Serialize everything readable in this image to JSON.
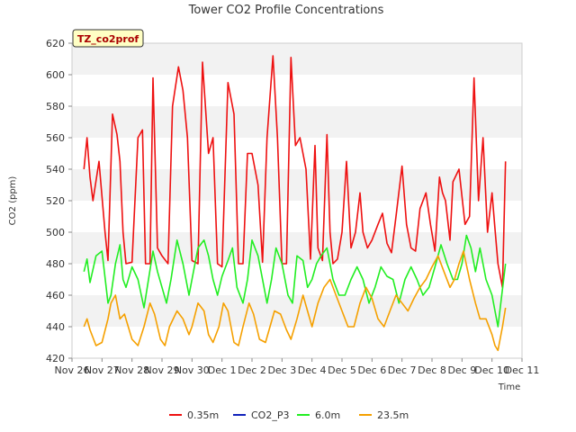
{
  "chart_data": {
    "type": "line",
    "title": "Tower CO2 Profile Concentrations",
    "badge": "TZ_co2prof",
    "xlabel": "Time",
    "ylabel": "CO2 (ppm)",
    "ylim": [
      420,
      620
    ],
    "yticks": [
      420,
      440,
      460,
      480,
      500,
      520,
      540,
      560,
      580,
      600,
      620
    ],
    "xlim": [
      0,
      15
    ],
    "xtick_labels": [
      "Nov 26",
      "Nov 27",
      "Nov 28",
      "Nov 29",
      "Nov 30",
      "Dec 1",
      "Dec 2",
      "Dec 3",
      "Dec 4",
      "Dec 5",
      "Dec 6",
      "Dec 7",
      "Dec 8",
      "Dec 9",
      "Dec 10",
      "Dec 11"
    ],
    "grid": "horizontal bands",
    "legend_position": "bottom",
    "series": [
      {
        "name": "0.35m",
        "color": "#ee1111",
        "x": [
          0.4,
          0.5,
          0.6,
          0.7,
          0.9,
          1.1,
          1.2,
          1.35,
          1.5,
          1.6,
          1.7,
          1.8,
          2.0,
          2.2,
          2.35,
          2.45,
          2.6,
          2.7,
          2.85,
          3.0,
          3.2,
          3.35,
          3.55,
          3.7,
          3.85,
          4.0,
          4.2,
          4.35,
          4.55,
          4.7,
          4.85,
          5.0,
          5.2,
          5.4,
          5.55,
          5.7,
          5.85,
          6.0,
          6.2,
          6.35,
          6.5,
          6.7,
          6.85,
          7.0,
          7.15,
          7.3,
          7.45,
          7.6,
          7.8,
          7.95,
          8.1,
          8.2,
          8.35,
          8.5,
          8.6,
          8.7,
          8.85,
          9.0,
          9.15,
          9.3,
          9.45,
          9.6,
          9.7,
          9.85,
          10.0,
          10.2,
          10.35,
          10.5,
          10.65,
          10.8,
          11.0,
          11.15,
          11.3,
          11.45,
          11.6,
          11.8,
          11.95,
          12.1,
          12.25,
          12.35,
          12.45,
          12.6,
          12.7,
          12.9,
          13.1,
          13.25,
          13.4,
          13.55,
          13.7,
          13.85,
          14.0,
          14.1,
          14.2,
          14.35,
          14.45
        ],
        "values": [
          540,
          560,
          535,
          520,
          545,
          500,
          482,
          575,
          562,
          545,
          500,
          480,
          481,
          560,
          565,
          480,
          480,
          598,
          490,
          485,
          480,
          580,
          605,
          590,
          560,
          482,
          480,
          608,
          550,
          560,
          480,
          478,
          595,
          575,
          480,
          480,
          550,
          550,
          530,
          481,
          560,
          612,
          560,
          480,
          480,
          611,
          555,
          560,
          540,
          483,
          555,
          490,
          482,
          562,
          500,
          480,
          483,
          500,
          545,
          490,
          500,
          525,
          500,
          490,
          495,
          505,
          512,
          493,
          487,
          510,
          542,
          505,
          490,
          488,
          515,
          525,
          505,
          488,
          535,
          525,
          520,
          495,
          532,
          540,
          505,
          510,
          598,
          520,
          560,
          500,
          525,
          502,
          480,
          465,
          545
        ]
      },
      {
        "name": "CO2_P3",
        "color": "#1122bb",
        "x": [],
        "values": []
      },
      {
        "name": "6.0m",
        "color": "#22ee22",
        "x": [
          0.4,
          0.5,
          0.6,
          0.8,
          1.0,
          1.2,
          1.3,
          1.45,
          1.6,
          1.7,
          1.8,
          2.0,
          2.2,
          2.4,
          2.55,
          2.7,
          2.85,
          3.0,
          3.15,
          3.3,
          3.5,
          3.7,
          3.9,
          4.0,
          4.2,
          4.4,
          4.55,
          4.7,
          4.85,
          5.0,
          5.2,
          5.35,
          5.5,
          5.7,
          5.85,
          6.0,
          6.2,
          6.35,
          6.5,
          6.65,
          6.8,
          7.0,
          7.2,
          7.35,
          7.5,
          7.7,
          7.85,
          8.0,
          8.15,
          8.3,
          8.5,
          8.7,
          8.9,
          9.1,
          9.3,
          9.5,
          9.7,
          9.9,
          10.1,
          10.3,
          10.5,
          10.7,
          10.9,
          11.1,
          11.3,
          11.5,
          11.7,
          11.9,
          12.1,
          12.3,
          12.5,
          12.7,
          12.85,
          13.0,
          13.15,
          13.3,
          13.45,
          13.6,
          13.8,
          14.0,
          14.2,
          14.45
        ],
        "values": [
          475,
          483,
          468,
          485,
          488,
          455,
          460,
          480,
          492,
          470,
          465,
          478,
          470,
          452,
          470,
          488,
          475,
          465,
          455,
          470,
          495,
          480,
          460,
          470,
          490,
          495,
          485,
          470,
          460,
          472,
          482,
          490,
          465,
          455,
          470,
          495,
          485,
          470,
          455,
          470,
          490,
          480,
          460,
          455,
          485,
          482,
          465,
          470,
          480,
          485,
          490,
          470,
          460,
          460,
          470,
          478,
          470,
          455,
          465,
          478,
          472,
          470,
          455,
          470,
          478,
          470,
          460,
          465,
          478,
          492,
          480,
          470,
          470,
          480,
          498,
          490,
          475,
          490,
          470,
          460,
          440,
          480
        ]
      },
      {
        "name": "23.5m",
        "color": "#f5a000",
        "x": [
          0.4,
          0.5,
          0.6,
          0.8,
          1.0,
          1.2,
          1.3,
          1.45,
          1.6,
          1.75,
          2.0,
          2.2,
          2.4,
          2.6,
          2.75,
          2.95,
          3.1,
          3.25,
          3.5,
          3.7,
          3.9,
          4.0,
          4.2,
          4.4,
          4.55,
          4.7,
          4.9,
          5.05,
          5.2,
          5.4,
          5.55,
          5.7,
          5.9,
          6.05,
          6.25,
          6.45,
          6.6,
          6.75,
          6.95,
          7.15,
          7.3,
          7.5,
          7.7,
          7.85,
          8.0,
          8.2,
          8.4,
          8.6,
          8.8,
          9.0,
          9.2,
          9.4,
          9.6,
          9.8,
          10.0,
          10.2,
          10.4,
          10.6,
          10.8,
          11.0,
          11.2,
          11.4,
          11.6,
          11.8,
          12.0,
          12.2,
          12.4,
          12.6,
          12.75,
          12.9,
          13.05,
          13.25,
          13.45,
          13.6,
          13.8,
          14.0,
          14.1,
          14.2,
          14.35,
          14.45
        ],
        "values": [
          440,
          445,
          438,
          428,
          430,
          445,
          455,
          460,
          445,
          448,
          432,
          428,
          440,
          455,
          448,
          432,
          428,
          440,
          450,
          445,
          435,
          440,
          455,
          450,
          435,
          430,
          440,
          455,
          450,
          430,
          428,
          440,
          455,
          448,
          432,
          430,
          440,
          450,
          448,
          438,
          432,
          445,
          460,
          450,
          440,
          455,
          465,
          470,
          460,
          450,
          440,
          440,
          455,
          465,
          458,
          445,
          440,
          450,
          460,
          455,
          450,
          458,
          465,
          470,
          478,
          485,
          475,
          465,
          470,
          480,
          488,
          470,
          455,
          445,
          445,
          435,
          428,
          425,
          440,
          452
        ]
      }
    ]
  }
}
